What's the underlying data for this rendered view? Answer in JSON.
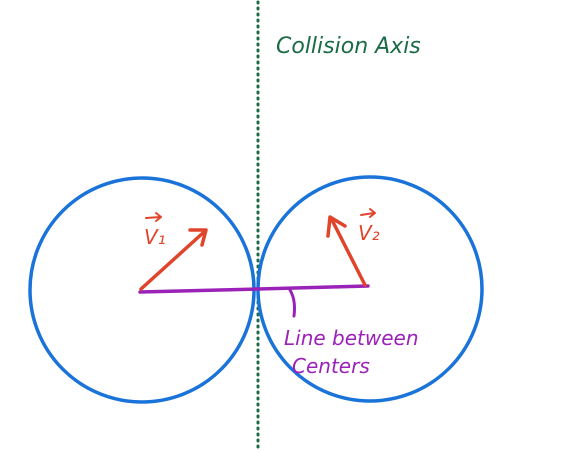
{
  "labels": {
    "collision_axis": "Collision Axis",
    "v1": "V₁",
    "v2": "V₂",
    "line_between_line1": "Line between",
    "line_between_line2": "Centers"
  },
  "colors": {
    "circle": "#1a73d9",
    "axis": "#1a6b46",
    "velocity": "#e0452c",
    "centers_line": "#9b22b8",
    "background": "#ffffff"
  }
}
